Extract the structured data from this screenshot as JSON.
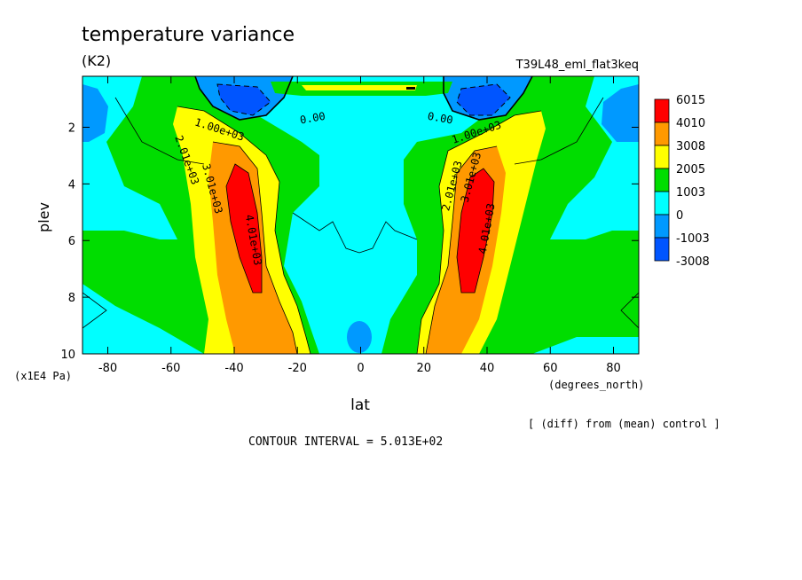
{
  "chart_data": {
    "type": "contour",
    "title": "temperature variance",
    "units": "(K2)",
    "run_label": "T39L48_eml_flat3keq",
    "xlabel": "lat",
    "x_units": "(degrees_north)",
    "ylabel": "plev",
    "y_units": "(x1E4 Pa)",
    "xlim": [
      -88,
      88
    ],
    "ylim": [
      10,
      0.2
    ],
    "x_ticks": [
      -80,
      -60,
      -40,
      -20,
      0,
      20,
      40,
      60,
      80
    ],
    "y_ticks": [
      2,
      4,
      6,
      8,
      10
    ],
    "x_tick_labels": [
      "-80",
      "-60",
      "-40",
      "-20",
      "0",
      "20",
      "40",
      "60",
      "80"
    ],
    "y_tick_labels": [
      "2",
      "4",
      "6",
      "8",
      "10"
    ],
    "diff_note": "[ (diff) from (mean) control ]",
    "contour_interval": "CONTOUR INTERVAL = 5.013E+02",
    "legend": {
      "labels": [
        "6015",
        "4010",
        "3008",
        "2005",
        "1003",
        "0",
        "-1003",
        "-3008"
      ],
      "colors": [
        "#ff0000",
        "#ff9900",
        "#ffff00",
        "#00dd00",
        "#00ffff",
        "#0099ff",
        "#0055ff"
      ]
    },
    "contour_labels": [
      {
        "text": "2.01e+03",
        "x": -56,
        "y": 3.2
      },
      {
        "text": "3.01e+03",
        "x": -48,
        "y": 4.2
      },
      {
        "text": "4.01e+03",
        "x": -35,
        "y": 6.0
      },
      {
        "text": "1.00e+03",
        "x": -45,
        "y": 2.2
      },
      {
        "text": "0.00",
        "x": -15,
        "y": 1.8
      },
      {
        "text": "0.00",
        "x": 25,
        "y": 1.8
      },
      {
        "text": "1.00e+03",
        "x": 37,
        "y": 2.3
      },
      {
        "text": "2.01e+03",
        "x": 30,
        "y": 4.1
      },
      {
        "text": "3.01e+03",
        "x": 36,
        "y": 3.8
      },
      {
        "text": "4.01e+03",
        "x": 41,
        "y": 5.6
      }
    ]
  }
}
